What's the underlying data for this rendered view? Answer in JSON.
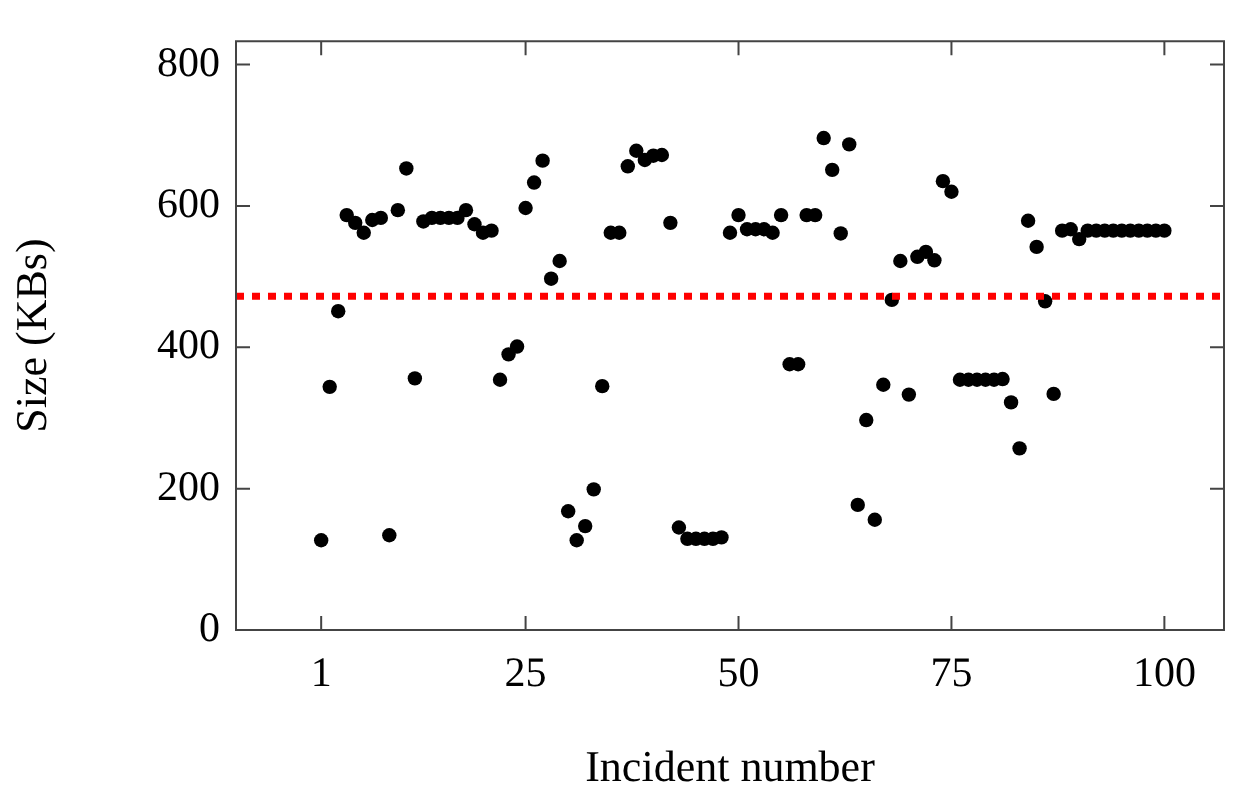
{
  "chart_data": {
    "type": "scatter",
    "xlabel": "Incident number",
    "ylabel": "Size (KBs)",
    "x": [
      1,
      2,
      3,
      4,
      5,
      6,
      7,
      8,
      9,
      10,
      11,
      12,
      13,
      14,
      15,
      16,
      17,
      18,
      19,
      20,
      21,
      22,
      23,
      24,
      25,
      26,
      27,
      28,
      29,
      30,
      31,
      32,
      33,
      34,
      35,
      36,
      37,
      38,
      39,
      40,
      41,
      42,
      43,
      44,
      45,
      46,
      47,
      48,
      49,
      50,
      51,
      52,
      53,
      54,
      55,
      56,
      57,
      58,
      59,
      60,
      61,
      62,
      63,
      64,
      65,
      66,
      67,
      68,
      69,
      70,
      71,
      72,
      73,
      74,
      75,
      76,
      77,
      78,
      79,
      80,
      81,
      82,
      83,
      84,
      85,
      86,
      87,
      88,
      89,
      90,
      91,
      92,
      93,
      94,
      95,
      96,
      97,
      98,
      99,
      100
    ],
    "series": [
      {
        "color": "#000000",
        "values": [
          127,
          344,
          451,
          587,
          576,
          562,
          580,
          583,
          134,
          594,
          653,
          356,
          578,
          583,
          583,
          583,
          583,
          594,
          574,
          562,
          565,
          354,
          390,
          401,
          597,
          633,
          664,
          497,
          522,
          168,
          127,
          147,
          199,
          345,
          562,
          562,
          656,
          678,
          665,
          671,
          672,
          576,
          145,
          129,
          129,
          129,
          129,
          131,
          562,
          587,
          567,
          567,
          567,
          562,
          587,
          376,
          376,
          587,
          587,
          696,
          651,
          561,
          687,
          177,
          297,
          156,
          347,
          467,
          522,
          333,
          528,
          535,
          523,
          635,
          620,
          354,
          354,
          354,
          354,
          354,
          355,
          322,
          257,
          579,
          542,
          465,
          334,
          565,
          567,
          553,
          565,
          565,
          565,
          565,
          565,
          565,
          565,
          565,
          565,
          565
        ]
      }
    ],
    "xlim": [
      -9,
      107
    ],
    "ylim": [
      0,
      833
    ],
    "xticks": [
      1,
      25,
      50,
      75,
      100
    ],
    "yticks": [
      0,
      200,
      400,
      600,
      800
    ],
    "marker": "circle",
    "grid": false,
    "legend": false,
    "ref_lines": [
      {
        "axis": "y",
        "value": 472,
        "color": "#ff0000",
        "line_style": "dotted"
      }
    ]
  }
}
